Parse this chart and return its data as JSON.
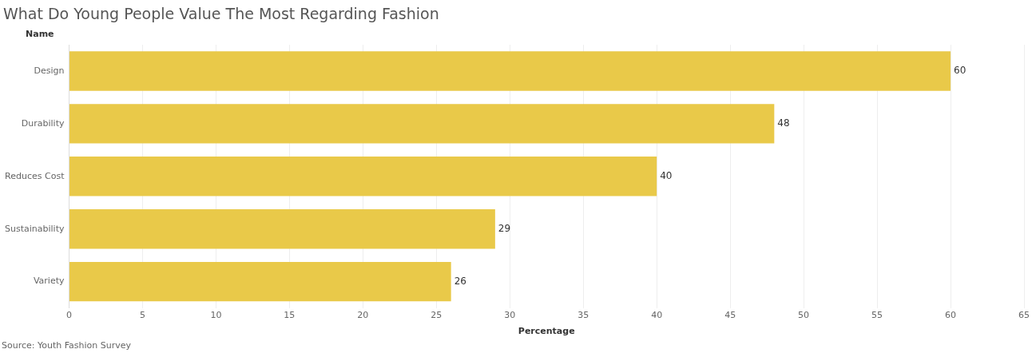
{
  "chart_data": {
    "type": "bar",
    "orientation": "horizontal",
    "title": "What Do Young People Value The Most Regarding Fashion",
    "ylabel": "Name",
    "xlabel": "Percentage",
    "categories": [
      "Design",
      "Durability",
      "Reduces Cost",
      "Sustainability",
      "Variety"
    ],
    "values": [
      60,
      48,
      40,
      29,
      26
    ],
    "color": "#e9c949",
    "xlim": [
      0,
      65
    ],
    "xticks": [
      0,
      5,
      10,
      15,
      20,
      25,
      30,
      35,
      40,
      45,
      50,
      55,
      60,
      65
    ],
    "grid": "x",
    "data_labels": true,
    "legend": false,
    "annotations": [
      "Source: Youth Fashion Survey"
    ]
  }
}
